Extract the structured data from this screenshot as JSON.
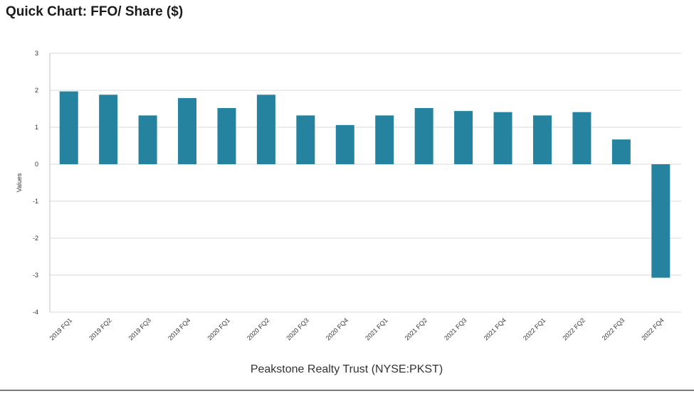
{
  "page": {
    "title": "Quick Chart: FFO/ Share ($)"
  },
  "chart_data": {
    "type": "bar",
    "xlabel": "Peakstone Realty Trust (NYSE:PKST)",
    "ylabel": "Values",
    "ylim": [
      -4,
      3
    ],
    "yticks": [
      3,
      2,
      1,
      0,
      -1,
      -2,
      -3,
      -4
    ],
    "grid": true,
    "bar_color": "#2683a0",
    "categories": [
      "2019 FQ1",
      "2019 FQ2",
      "2019 FQ3",
      "2019 FQ4",
      "2020 FQ1",
      "2020 FQ2",
      "2020 FQ3",
      "2020 FQ4",
      "2021 FQ1",
      "2021 FQ2",
      "2021 FQ3",
      "2021 FQ4",
      "2022 FQ1",
      "2022 FQ2",
      "2022 FQ3",
      "2022 FQ4"
    ],
    "values": [
      1.97,
      1.88,
      1.32,
      1.79,
      1.52,
      1.88,
      1.32,
      1.06,
      1.32,
      1.52,
      1.44,
      1.41,
      1.32,
      1.41,
      0.67,
      -3.07
    ]
  }
}
